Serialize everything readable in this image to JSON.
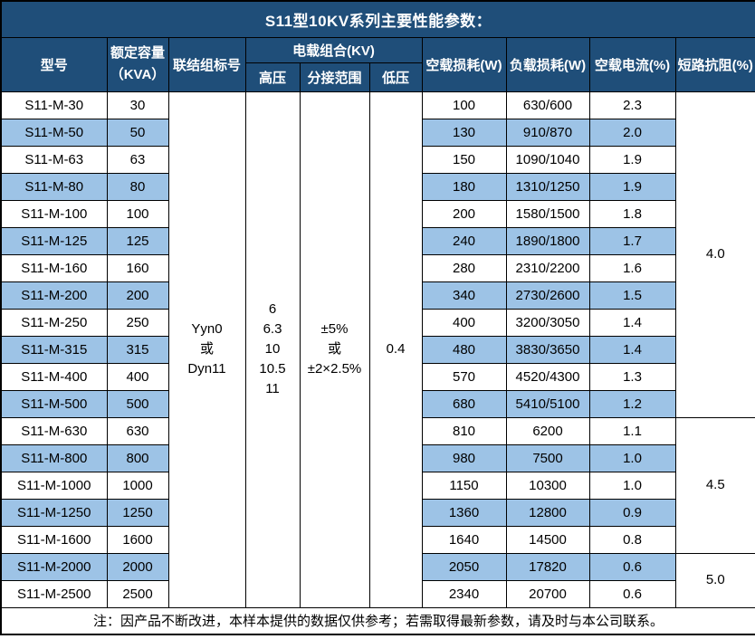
{
  "title": "S11型10KV系列主要性能参数：",
  "colors": {
    "header_navy": "#1F4E79",
    "stripe_blue": "#9DC3E6",
    "border_black": "#000000",
    "header_text": "#ffffff",
    "body_text": "#000000"
  },
  "table": {
    "headers": {
      "model": "型号",
      "capacity_line1": "额定容量",
      "capacity_line2": "（KVA）",
      "connection_group": "联结组标号",
      "voltage_combo": "电载组合(KV)",
      "high_voltage": "高压",
      "tap_range": "分接范围",
      "low_voltage": "低压",
      "no_load_loss": "空载损耗(W)",
      "load_loss": "负载损耗(W)",
      "no_load_current": "空载电流(%)",
      "short_circuit_impedance": "短路抗阻(%)"
    },
    "merged": {
      "connection_group": "Yyn0\n或\nDyn11",
      "high_voltage": "6\n6.3\n10\n10.5\n11",
      "tap_range": "±5%\n或\n±2×2.5%",
      "low_voltage": "0.4"
    },
    "impedance_groups": [
      {
        "value": "4.0",
        "rows": 12
      },
      {
        "value": "4.5",
        "rows": 5
      },
      {
        "value": "5.0",
        "rows": 2
      }
    ],
    "rows": [
      {
        "model": "S11-M-30",
        "capacity": "30",
        "no_load_loss": "100",
        "load_loss": "630/600",
        "no_load_current": "2.3"
      },
      {
        "model": "S11-M-50",
        "capacity": "50",
        "no_load_loss": "130",
        "load_loss": "910/870",
        "no_load_current": "2.0"
      },
      {
        "model": "S11-M-63",
        "capacity": "63",
        "no_load_loss": "150",
        "load_loss": "1090/1040",
        "no_load_current": "1.9"
      },
      {
        "model": "S11-M-80",
        "capacity": "80",
        "no_load_loss": "180",
        "load_loss": "1310/1250",
        "no_load_current": "1.9"
      },
      {
        "model": "S11-M-100",
        "capacity": "100",
        "no_load_loss": "200",
        "load_loss": "1580/1500",
        "no_load_current": "1.8"
      },
      {
        "model": "S11-M-125",
        "capacity": "125",
        "no_load_loss": "240",
        "load_loss": "1890/1800",
        "no_load_current": "1.7"
      },
      {
        "model": "S11-M-160",
        "capacity": "160",
        "no_load_loss": "280",
        "load_loss": "2310/2200",
        "no_load_current": "1.6"
      },
      {
        "model": "S11-M-200",
        "capacity": "200",
        "no_load_loss": "340",
        "load_loss": "2730/2600",
        "no_load_current": "1.5"
      },
      {
        "model": "S11-M-250",
        "capacity": "250",
        "no_load_loss": "400",
        "load_loss": "3200/3050",
        "no_load_current": "1.4"
      },
      {
        "model": "S11-M-315",
        "capacity": "315",
        "no_load_loss": "480",
        "load_loss": "3830/3650",
        "no_load_current": "1.4"
      },
      {
        "model": "S11-M-400",
        "capacity": "400",
        "no_load_loss": "570",
        "load_loss": "4520/4300",
        "no_load_current": "1.3"
      },
      {
        "model": "S11-M-500",
        "capacity": "500",
        "no_load_loss": "680",
        "load_loss": "5410/5100",
        "no_load_current": "1.2"
      },
      {
        "model": "S11-M-630",
        "capacity": "630",
        "no_load_loss": "810",
        "load_loss": "6200",
        "no_load_current": "1.1"
      },
      {
        "model": "S11-M-800",
        "capacity": "800",
        "no_load_loss": "980",
        "load_loss": "7500",
        "no_load_current": "1.0"
      },
      {
        "model": "S11-M-1000",
        "capacity": "1000",
        "no_load_loss": "1150",
        "load_loss": "10300",
        "no_load_current": "1.0"
      },
      {
        "model": "S11-M-1250",
        "capacity": "1250",
        "no_load_loss": "1360",
        "load_loss": "12800",
        "no_load_current": "0.9"
      },
      {
        "model": "S11-M-1600",
        "capacity": "1600",
        "no_load_loss": "1640",
        "load_loss": "14500",
        "no_load_current": "0.8"
      },
      {
        "model": "S11-M-2000",
        "capacity": "2000",
        "no_load_loss": "2050",
        "load_loss": "17820",
        "no_load_current": "0.6"
      },
      {
        "model": "S11-M-2500",
        "capacity": "2500",
        "no_load_loss": "2340",
        "load_loss": "20700",
        "no_load_current": "0.6"
      }
    ],
    "note": "注：因产品不断改进，本样本提供的数据仅供参考；若需取得最新参数，请及时与本公司联系。"
  }
}
